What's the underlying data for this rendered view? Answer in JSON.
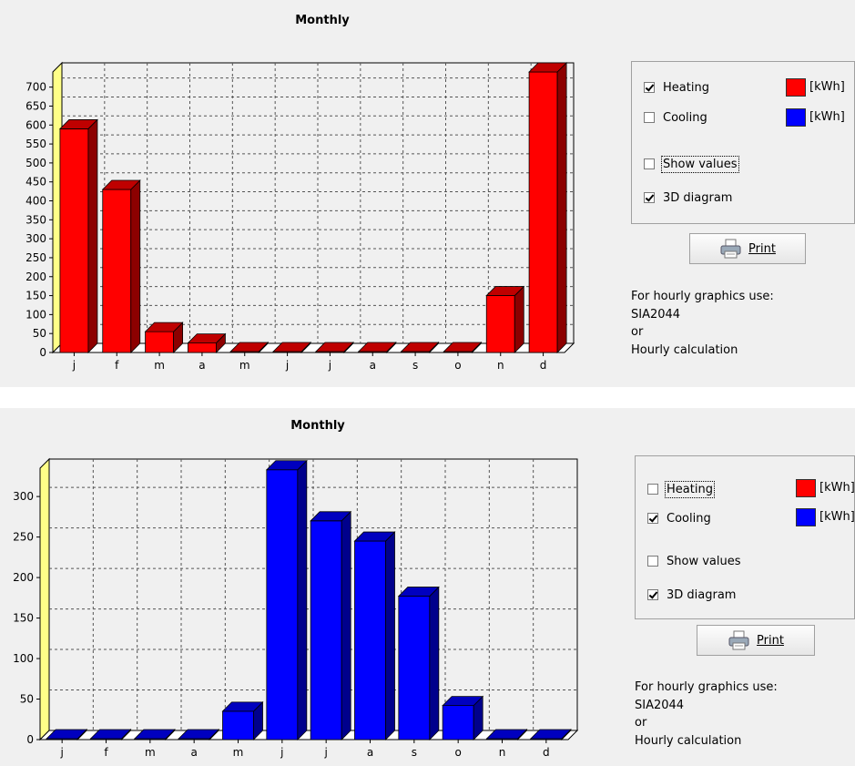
{
  "top": {
    "title": "Monthly",
    "options": {
      "heating": {
        "label": "Heating",
        "checked": true
      },
      "cooling": {
        "label": "Cooling",
        "checked": false
      },
      "show_values": {
        "label": "Show values",
        "checked": false
      },
      "diagram_3d": {
        "label": "3D diagram",
        "checked": true
      },
      "heating_unit": "[kWh]",
      "cooling_unit": "[kWh]"
    },
    "print_label": "Print",
    "info": [
      "For hourly graphics use:",
      "SIA2044",
      "or",
      "Hourly calculation"
    ]
  },
  "bottom": {
    "title": "Monthly",
    "options": {
      "heating": {
        "label": "Heating",
        "checked": false
      },
      "cooling": {
        "label": "Cooling",
        "checked": true
      },
      "show_values": {
        "label": "Show values",
        "checked": false
      },
      "diagram_3d": {
        "label": "3D diagram",
        "checked": true
      },
      "heating_unit": "[kWh]",
      "cooling_unit": "[kWh]"
    },
    "print_label": "Print",
    "info": [
      "For hourly graphics use:",
      "SIA2044",
      "or",
      "Hourly calculation"
    ]
  },
  "colors": {
    "heating": "#ff0000",
    "cooling": "#0000ff",
    "wall": "#ffff88"
  },
  "chart_data": [
    {
      "type": "bar",
      "title": "Monthly",
      "categories": [
        "j",
        "f",
        "m",
        "a",
        "m",
        "j",
        "j",
        "a",
        "s",
        "o",
        "n",
        "d"
      ],
      "values": [
        590,
        430,
        55,
        25,
        0,
        0,
        0,
        0,
        0,
        0,
        150,
        740
      ],
      "yticks": [
        0,
        50,
        100,
        150,
        200,
        250,
        300,
        350,
        400,
        450,
        500,
        550,
        600,
        650,
        700
      ],
      "ylim": [
        0,
        740
      ],
      "grid": true,
      "style": "3d",
      "color": "#ff0000"
    },
    {
      "type": "bar",
      "title": "Monthly",
      "categories": [
        "j",
        "f",
        "m",
        "a",
        "m",
        "j",
        "j",
        "a",
        "s",
        "o",
        "n",
        "d"
      ],
      "values": [
        0,
        0,
        0,
        0,
        35,
        333,
        270,
        245,
        177,
        42,
        0,
        0
      ],
      "yticks": [
        0,
        50,
        100,
        150,
        200,
        250,
        300
      ],
      "ylim": [
        0,
        335
      ],
      "grid": true,
      "style": "3d",
      "color": "#0000ff"
    }
  ]
}
